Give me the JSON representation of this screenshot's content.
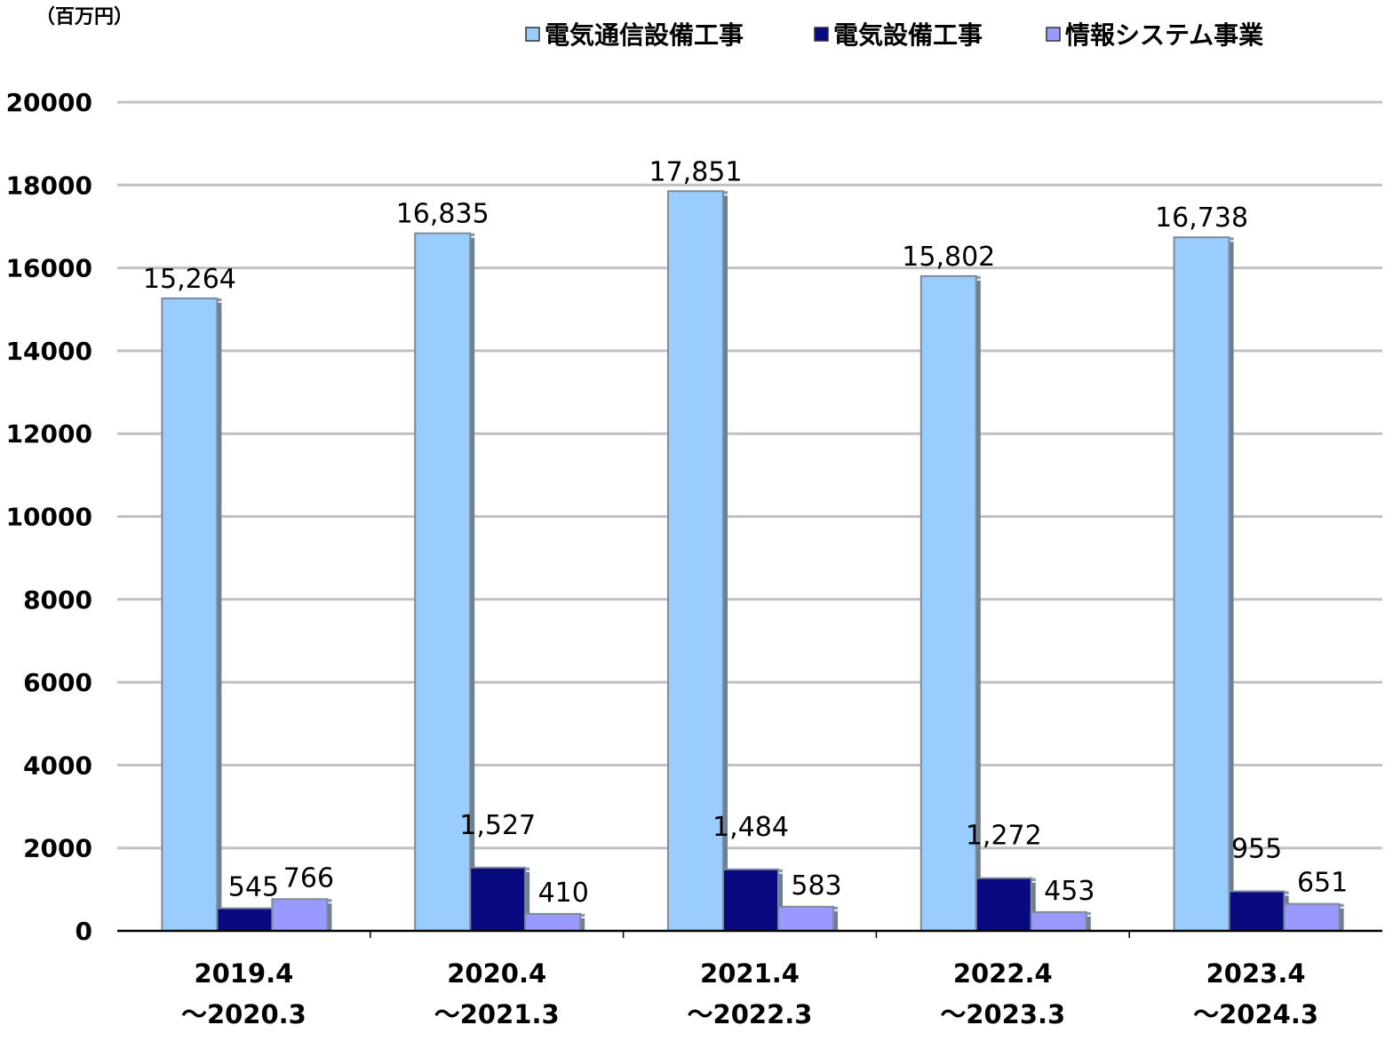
{
  "chart_data": {
    "type": "bar",
    "unit_label": "（百万円）",
    "categories": [
      [
        "2019.4",
        "～2020.3"
      ],
      [
        "2020.4",
        "～2021.3"
      ],
      [
        "2021.4",
        "～2022.3"
      ],
      [
        "2022.4",
        "～2023.3"
      ],
      [
        "2023.4",
        "～2024.3"
      ]
    ],
    "series": [
      {
        "name": "電気通信設備工事",
        "color": "#99ccff",
        "values": [
          15264,
          16835,
          17851,
          15802,
          16738
        ],
        "labels": [
          "15,264",
          "16,835",
          "17,851",
          "15,802",
          "16,738"
        ]
      },
      {
        "name": "電気設備工事",
        "color": "#0a0a80",
        "values": [
          545,
          1527,
          1484,
          1272,
          955
        ],
        "labels": [
          "545",
          "1,527",
          "1,484",
          "1,272",
          "955"
        ]
      },
      {
        "name": "情報システム事業",
        "color": "#9999ff",
        "values": [
          766,
          410,
          583,
          453,
          651
        ],
        "labels": [
          "766",
          "410",
          "583",
          "453",
          "651"
        ]
      }
    ],
    "ylim": [
      0,
      20000
    ],
    "yticks": [
      0,
      2000,
      4000,
      6000,
      8000,
      10000,
      12000,
      14000,
      16000,
      18000,
      20000
    ],
    "grid": true,
    "legend_position": "top-right"
  }
}
